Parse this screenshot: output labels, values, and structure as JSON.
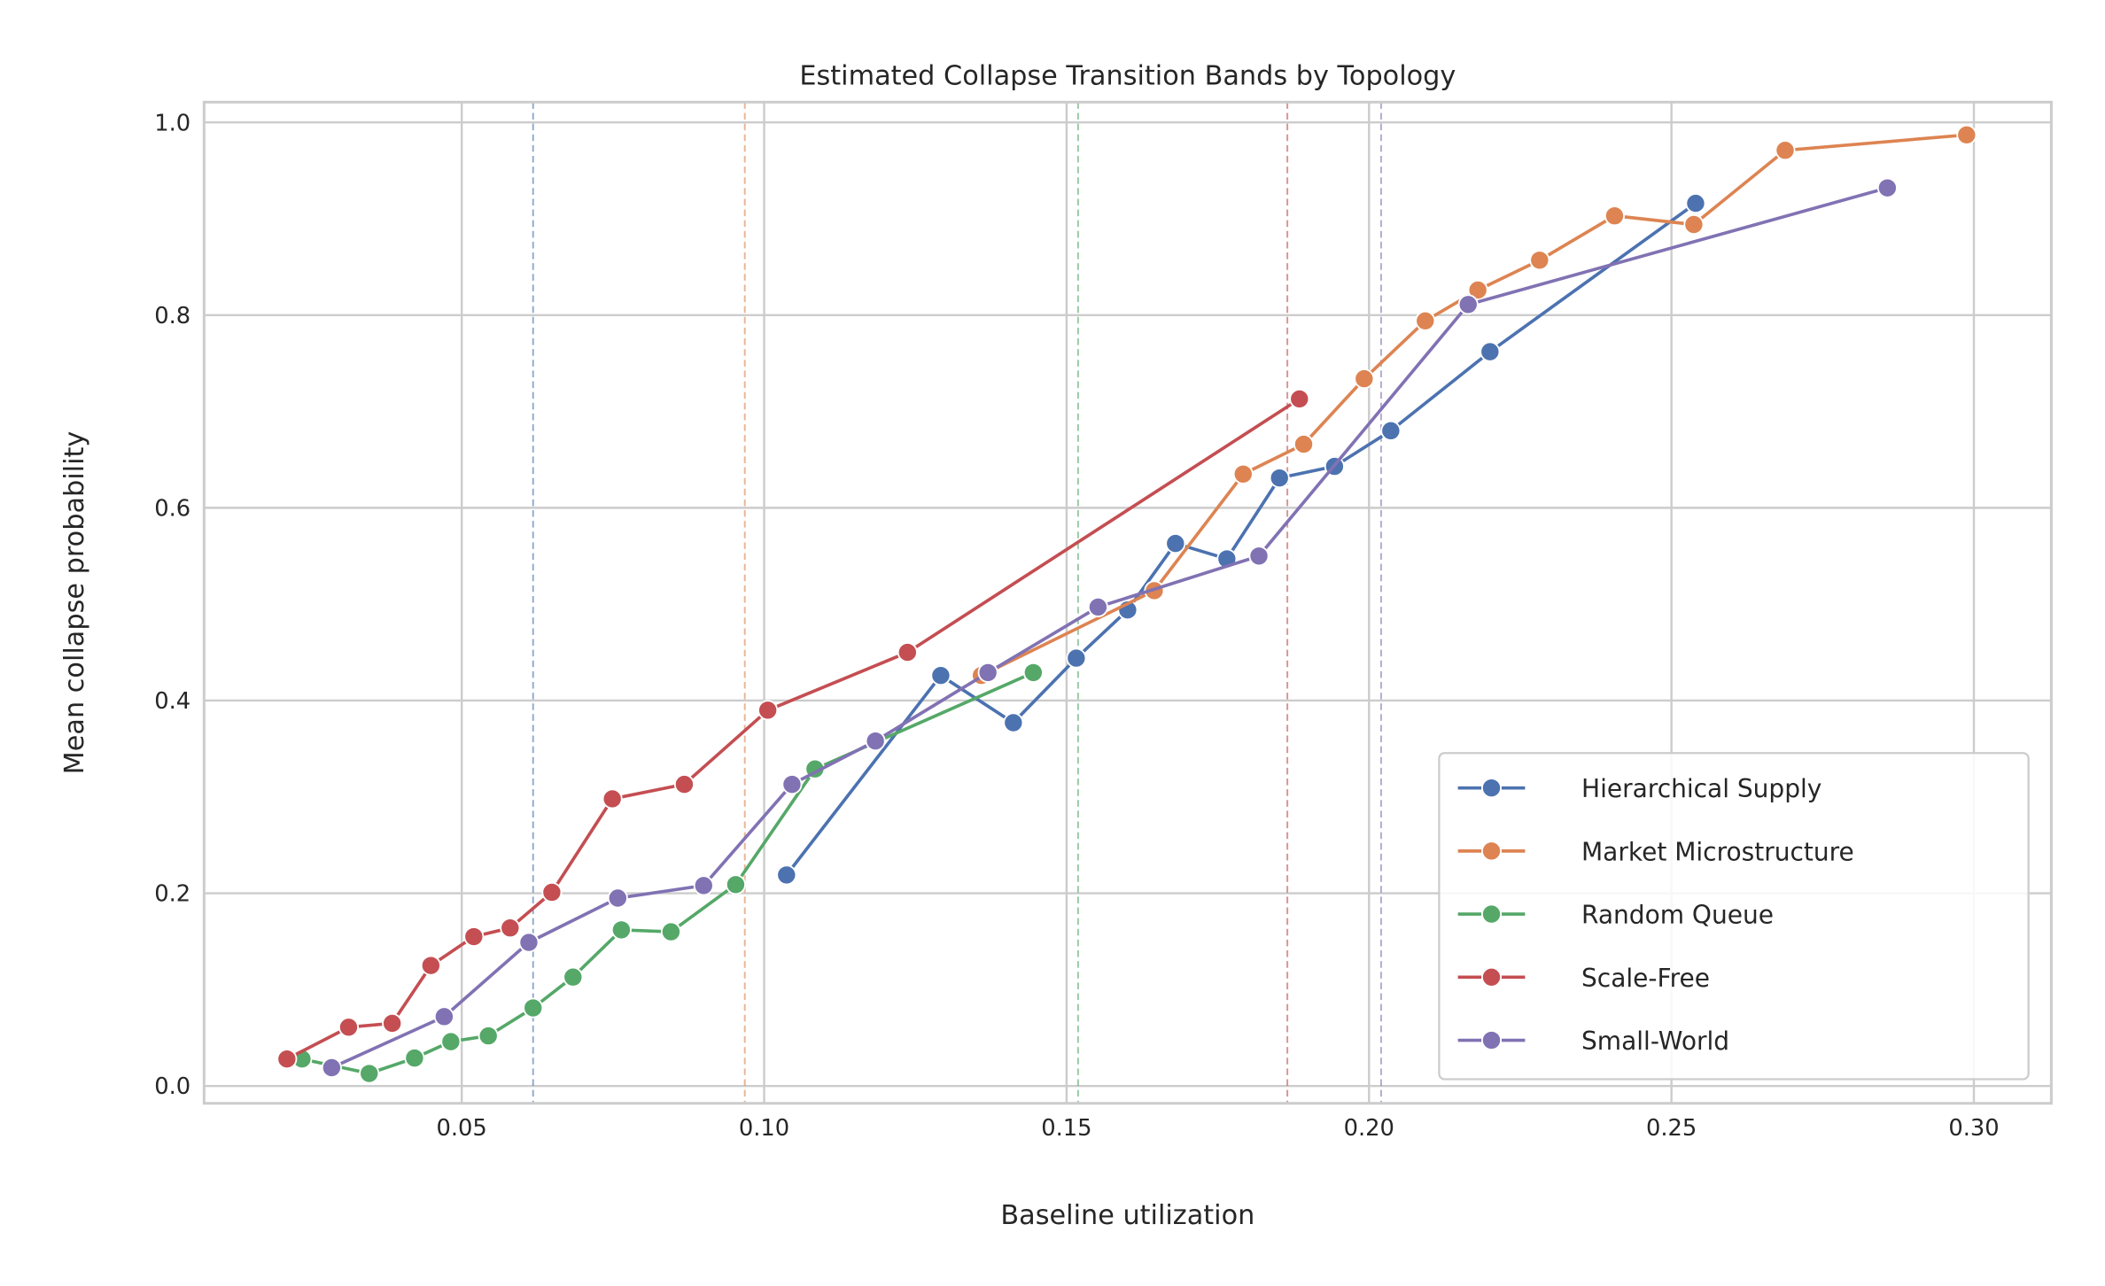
{
  "chart_data": {
    "type": "line",
    "title": "Estimated Collapse Transition Bands by Topology",
    "xlabel": "Baseline utilization",
    "ylabel": "Mean collapse probability",
    "xlim": [
      0.0074,
      0.3128
    ],
    "ylim": [
      -0.018,
      1.021
    ],
    "xticks": [
      0.05,
      0.1,
      0.15,
      0.2,
      0.25,
      0.3
    ],
    "xtick_labels": [
      "0.05",
      "0.10",
      "0.15",
      "0.20",
      "0.25",
      "0.30"
    ],
    "yticks": [
      0.0,
      0.2,
      0.4,
      0.6,
      0.8,
      1.0
    ],
    "ytick_labels": [
      "0.0",
      "0.2",
      "0.4",
      "0.6",
      "0.8",
      "1.0"
    ],
    "grid": true,
    "legend_position": "lower-right",
    "series": [
      {
        "name": "Hierarchical Supply",
        "color": "#4c72b0",
        "threshold": 0.0618,
        "x": [
          0.1037,
          0.1292,
          0.1412,
          0.1516,
          0.1601,
          0.168,
          0.1765,
          0.1852,
          0.1943,
          0.2036,
          0.22,
          0.254
        ],
        "y": [
          0.219,
          0.426,
          0.377,
          0.444,
          0.494,
          0.563,
          0.547,
          0.631,
          0.643,
          0.68,
          0.762,
          0.916
        ]
      },
      {
        "name": "Market Microstructure",
        "color": "#dd8452",
        "threshold": 0.0968,
        "x": [
          0.1359,
          0.1645,
          0.1792,
          0.1892,
          0.1992,
          0.2093,
          0.218,
          0.2282,
          0.2406,
          0.2537,
          0.2688,
          0.2988
        ],
        "y": [
          0.426,
          0.514,
          0.635,
          0.666,
          0.734,
          0.794,
          0.826,
          0.857,
          0.903,
          0.894,
          0.971,
          0.987
        ]
      },
      {
        "name": "Random Queue",
        "color": "#55a868",
        "threshold": 0.1519,
        "x": [
          0.0236,
          0.0347,
          0.0422,
          0.0482,
          0.0544,
          0.0618,
          0.0684,
          0.0764,
          0.0846,
          0.0953,
          0.1084,
          0.1445
        ],
        "y": [
          0.028,
          0.013,
          0.029,
          0.046,
          0.052,
          0.081,
          0.113,
          0.162,
          0.16,
          0.209,
          0.329,
          0.429
        ]
      },
      {
        "name": "Scale-Free",
        "color": "#c44e52",
        "threshold": 0.1865,
        "x": [
          0.0211,
          0.0313,
          0.0385,
          0.0449,
          0.052,
          0.058,
          0.0649,
          0.0749,
          0.0868,
          0.1006,
          0.1237,
          0.1885
        ],
        "y": [
          0.028,
          0.061,
          0.065,
          0.125,
          0.155,
          0.164,
          0.201,
          0.298,
          0.313,
          0.39,
          0.45,
          0.713
        ]
      },
      {
        "name": "Small-World",
        "color": "#8172b3",
        "threshold": 0.202,
        "x": [
          0.0285,
          0.0471,
          0.0611,
          0.0758,
          0.09,
          0.1046,
          0.1184,
          0.137,
          0.1552,
          0.1818,
          0.2164,
          0.2857
        ],
        "y": [
          0.019,
          0.072,
          0.149,
          0.195,
          0.208,
          0.313,
          0.358,
          0.429,
          0.497,
          0.55,
          0.811,
          0.932
        ]
      }
    ]
  }
}
